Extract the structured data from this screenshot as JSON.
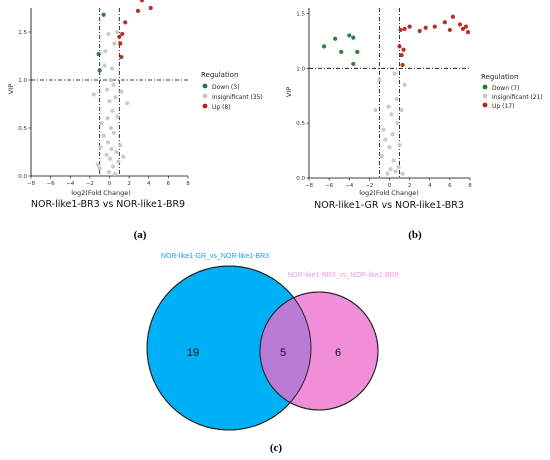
{
  "colors": {
    "down": "#1e7b2e",
    "insignificant": "#c8c8c8",
    "up": "#b7221c",
    "venn_left": "#00b0f6",
    "venn_right": "#f08fd8",
    "venn_overlap": "#b97bd6",
    "venn_left_label": "#1ba0d8",
    "venn_right_label": "#e79bde"
  },
  "legend": {
    "title": "Regulation"
  },
  "chart_data": [
    {
      "type": "scatter",
      "panel": "(a)",
      "title": "NOR-like1-BR3 vs NOR-like1-BR9",
      "xlabel": "log2(Fold Change)",
      "ylabel": "VIP",
      "xlim": [
        -8,
        8
      ],
      "ylim": [
        0,
        1.75
      ],
      "xticks": [
        -8,
        -6,
        -4,
        -2,
        0,
        2,
        4,
        6,
        8
      ],
      "yticks": [
        0.0,
        0.5,
        1.0,
        1.5
      ],
      "vlines": [
        -1,
        1
      ],
      "hline": 1.0,
      "grid": false,
      "legend_position": "right",
      "series": [
        {
          "name": "Down (3)",
          "color_key": "down",
          "points": [
            [
              -1.1,
              1.27
            ],
            [
              -1.0,
              1.1
            ],
            [
              -0.6,
              1.68
            ]
          ]
        },
        {
          "name": "Insignificant (35)",
          "color_key": "insignificant",
          "points": [
            [
              -1.6,
              0.85
            ],
            [
              -1.2,
              0.12
            ],
            [
              -1.0,
              0.08
            ],
            [
              -0.9,
              0.3
            ],
            [
              -0.8,
              0.55
            ],
            [
              -0.6,
              0.42
            ],
            [
              -0.5,
              1.15
            ],
            [
              -0.4,
              1.3
            ],
            [
              -0.3,
              0.22
            ],
            [
              -0.25,
              0.9
            ],
            [
              -0.2,
              0.6
            ],
            [
              -0.15,
              0.35
            ],
            [
              -0.1,
              1.48
            ],
            [
              -0.05,
              0.04
            ],
            [
              0.0,
              0.78
            ],
            [
              0.05,
              0.18
            ],
            [
              0.1,
              1.0
            ],
            [
              0.15,
              0.5
            ],
            [
              0.2,
              0.28
            ],
            [
              0.25,
              1.12
            ],
            [
              0.3,
              0.68
            ],
            [
              0.35,
              0.1
            ],
            [
              0.4,
              0.95
            ],
            [
              0.45,
              0.45
            ],
            [
              0.5,
              1.38
            ],
            [
              0.55,
              0.02
            ],
            [
              0.6,
              0.82
            ],
            [
              0.7,
              0.25
            ],
            [
              0.75,
              1.5
            ],
            [
              0.8,
              0.62
            ],
            [
              0.9,
              0.15
            ],
            [
              1.1,
              0.32
            ],
            [
              1.2,
              0.88
            ],
            [
              1.4,
              0.2
            ],
            [
              1.8,
              0.76
            ]
          ]
        },
        {
          "name": "Up (8)",
          "color_key": "up",
          "points": [
            [
              1.0,
              1.45
            ],
            [
              1.1,
              1.38
            ],
            [
              1.2,
              1.24
            ],
            [
              1.3,
              1.48
            ],
            [
              1.6,
              1.6
            ],
            [
              2.9,
              1.72
            ],
            [
              3.3,
              1.83
            ],
            [
              4.2,
              1.75
            ]
          ]
        }
      ]
    },
    {
      "type": "scatter",
      "panel": "(b)",
      "title": "NOR-like1-GR vs NOR-like1-BR3",
      "xlabel": "log2(Fold Change)",
      "ylabel": "VIP",
      "xlim": [
        -8,
        8
      ],
      "ylim": [
        0,
        1.55
      ],
      "xticks": [
        -8,
        -6,
        -4,
        -2,
        0,
        2,
        4,
        6,
        8
      ],
      "yticks": [
        0.0,
        0.5,
        1.0,
        1.5
      ],
      "vlines": [
        -1,
        1
      ],
      "hline": 1.0,
      "grid": false,
      "legend_position": "right",
      "series": [
        {
          "name": "Down (7)",
          "color_key": "down",
          "points": [
            [
              -6.5,
              1.2
            ],
            [
              -5.4,
              1.27
            ],
            [
              -4.8,
              1.15
            ],
            [
              -4.0,
              1.3
            ],
            [
              -3.6,
              1.28
            ],
            [
              -3.2,
              1.15
            ],
            [
              -3.6,
              1.04
            ]
          ]
        },
        {
          "name": "Insignificant (21)",
          "color_key": "insignificant",
          "points": [
            [
              -1.4,
              0.62
            ],
            [
              -1.0,
              0.9
            ],
            [
              -0.8,
              0.2
            ],
            [
              -0.6,
              0.44
            ],
            [
              -0.4,
              0.35
            ],
            [
              -0.2,
              0.04
            ],
            [
              -0.1,
              0.65
            ],
            [
              0.0,
              0.28
            ],
            [
              0.1,
              0.08
            ],
            [
              0.2,
              0.58
            ],
            [
              0.3,
              0.4
            ],
            [
              0.4,
              0.16
            ],
            [
              0.5,
              0.95
            ],
            [
              0.6,
              0.06
            ],
            [
              0.7,
              0.72
            ],
            [
              0.8,
              0.5
            ],
            [
              0.9,
              0.1
            ],
            [
              1.0,
              0.3
            ],
            [
              1.2,
              0.62
            ],
            [
              1.3,
              0.04
            ],
            [
              1.5,
              0.85
            ]
          ]
        },
        {
          "name": "Up (17)",
          "color_key": "up",
          "points": [
            [
              1.0,
              1.2
            ],
            [
              1.1,
              1.35
            ],
            [
              1.2,
              1.12
            ],
            [
              1.4,
              1.17
            ],
            [
              1.5,
              1.36
            ],
            [
              3.0,
              1.34
            ],
            [
              4.5,
              1.38
            ],
            [
              5.5,
              1.42
            ],
            [
              6.3,
              1.47
            ],
            [
              7.0,
              1.4
            ],
            [
              7.3,
              1.36
            ],
            [
              7.6,
              1.38
            ],
            [
              7.8,
              1.33
            ],
            [
              6.0,
              1.35
            ],
            [
              3.6,
              1.37
            ],
            [
              2.0,
              1.38
            ],
            [
              1.3,
              1.03
            ]
          ]
        }
      ]
    },
    {
      "type": "venn",
      "panel": "(c)",
      "sets": [
        {
          "name": "NOR-like1-GR_vs_NOR-like1-BR3",
          "color_key": "venn_left",
          "only": 19
        },
        {
          "name": "NOR-like1-BR3_vs_NOR-like1-BR9",
          "color_key": "venn_right",
          "only": 6
        }
      ],
      "intersection": 5
    }
  ]
}
